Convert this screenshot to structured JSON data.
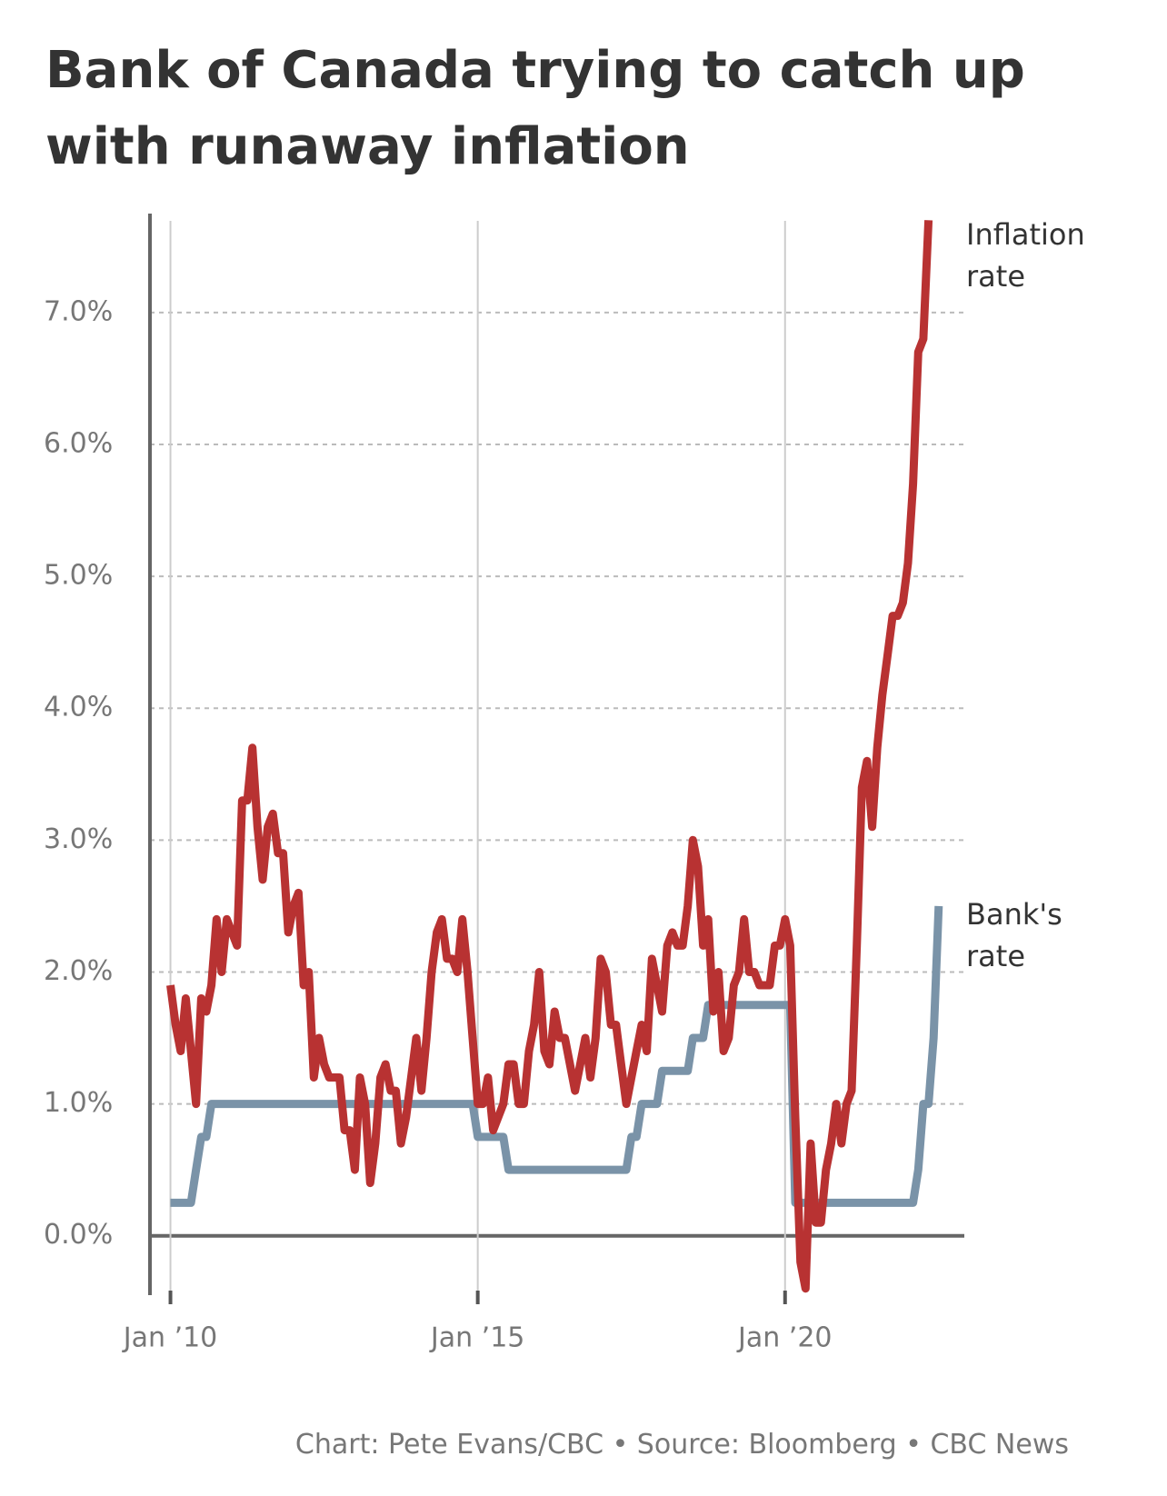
{
  "chart_data": {
    "type": "line",
    "title": "Bank of Canada trying to catch up with runaway inflation",
    "source": "Chart: Pete Evans/CBC • Source: Bloomberg • CBC News",
    "x": [
      "2010-01",
      "2010-02",
      "2010-03",
      "2010-04",
      "2010-05",
      "2010-06",
      "2010-07",
      "2010-08",
      "2010-09",
      "2010-10",
      "2010-11",
      "2010-12",
      "2011-01",
      "2011-02",
      "2011-03",
      "2011-04",
      "2011-05",
      "2011-06",
      "2011-07",
      "2011-08",
      "2011-09",
      "2011-10",
      "2011-11",
      "2011-12",
      "2012-01",
      "2012-02",
      "2012-03",
      "2012-04",
      "2012-05",
      "2012-06",
      "2012-07",
      "2012-08",
      "2012-09",
      "2012-10",
      "2012-11",
      "2012-12",
      "2013-01",
      "2013-02",
      "2013-03",
      "2013-04",
      "2013-05",
      "2013-06",
      "2013-07",
      "2013-08",
      "2013-09",
      "2013-10",
      "2013-11",
      "2013-12",
      "2014-01",
      "2014-02",
      "2014-03",
      "2014-04",
      "2014-05",
      "2014-06",
      "2014-07",
      "2014-08",
      "2014-09",
      "2014-10",
      "2014-11",
      "2014-12",
      "2015-01",
      "2015-02",
      "2015-03",
      "2015-04",
      "2015-05",
      "2015-06",
      "2015-07",
      "2015-08",
      "2015-09",
      "2015-10",
      "2015-11",
      "2015-12",
      "2016-01",
      "2016-02",
      "2016-03",
      "2016-04",
      "2016-05",
      "2016-06",
      "2016-07",
      "2016-08",
      "2016-09",
      "2016-10",
      "2016-11",
      "2016-12",
      "2017-01",
      "2017-02",
      "2017-03",
      "2017-04",
      "2017-05",
      "2017-06",
      "2017-07",
      "2017-08",
      "2017-09",
      "2017-10",
      "2017-11",
      "2017-12",
      "2018-01",
      "2018-02",
      "2018-03",
      "2018-04",
      "2018-05",
      "2018-06",
      "2018-07",
      "2018-08",
      "2018-09",
      "2018-10",
      "2018-11",
      "2018-12",
      "2019-01",
      "2019-02",
      "2019-03",
      "2019-04",
      "2019-05",
      "2019-06",
      "2019-07",
      "2019-08",
      "2019-09",
      "2019-10",
      "2019-11",
      "2019-12",
      "2020-01",
      "2020-02",
      "2020-03",
      "2020-04",
      "2020-05",
      "2020-06",
      "2020-07",
      "2020-08",
      "2020-09",
      "2020-10",
      "2020-11",
      "2020-12",
      "2021-01",
      "2021-02",
      "2021-03",
      "2021-04",
      "2021-05",
      "2021-06",
      "2021-07",
      "2021-08",
      "2021-09",
      "2021-10",
      "2021-11",
      "2021-12",
      "2022-01",
      "2022-02",
      "2022-03",
      "2022-04",
      "2022-05",
      "2022-06",
      "2022-07"
    ],
    "series": [
      {
        "name": "Inflation rate",
        "color": "#b83232",
        "values": [
          1.9,
          1.6,
          1.4,
          1.8,
          1.4,
          1.0,
          1.8,
          1.7,
          1.9,
          2.4,
          2.0,
          2.4,
          2.3,
          2.2,
          3.3,
          3.3,
          3.7,
          3.1,
          2.7,
          3.1,
          3.2,
          2.9,
          2.9,
          2.3,
          2.5,
          2.6,
          1.9,
          2.0,
          1.2,
          1.5,
          1.3,
          1.2,
          1.2,
          1.2,
          0.8,
          0.8,
          0.5,
          1.2,
          1.0,
          0.4,
          0.7,
          1.2,
          1.3,
          1.1,
          1.1,
          0.7,
          0.9,
          1.2,
          1.5,
          1.1,
          1.5,
          2.0,
          2.3,
          2.4,
          2.1,
          2.1,
          2.0,
          2.4,
          2.0,
          1.5,
          1.0,
          1.0,
          1.2,
          0.8,
          0.9,
          1.0,
          1.3,
          1.3,
          1.0,
          1.0,
          1.4,
          1.6,
          2.0,
          1.4,
          1.3,
          1.7,
          1.5,
          1.5,
          1.3,
          1.1,
          1.3,
          1.5,
          1.2,
          1.5,
          2.1,
          2.0,
          1.6,
          1.6,
          1.3,
          1.0,
          1.2,
          1.4,
          1.6,
          1.4,
          2.1,
          1.9,
          1.7,
          2.2,
          2.3,
          2.2,
          2.2,
          2.5,
          3.0,
          2.8,
          2.2,
          2.4,
          1.7,
          2.0,
          1.4,
          1.5,
          1.9,
          2.0,
          2.4,
          2.0,
          2.0,
          1.9,
          1.9,
          1.9,
          2.2,
          2.2,
          2.4,
          2.2,
          0.9,
          -0.2,
          -0.4,
          0.7,
          0.1,
          0.1,
          0.5,
          0.7,
          1.0,
          0.7,
          1.0,
          1.1,
          2.2,
          3.4,
          3.6,
          3.1,
          3.7,
          4.1,
          4.4,
          4.7,
          4.7,
          4.8,
          5.1,
          5.7,
          6.7,
          6.8,
          7.7,
          null,
          null
        ]
      },
      {
        "name": "Bank's rate",
        "color": "#7a93a8",
        "values": [
          0.25,
          0.25,
          0.25,
          0.25,
          0.25,
          0.5,
          0.75,
          0.75,
          1,
          1,
          1,
          1,
          1,
          1,
          1,
          1,
          1,
          1,
          1,
          1,
          1,
          1,
          1,
          1,
          1,
          1,
          1,
          1,
          1,
          1,
          1,
          1,
          1,
          1,
          1,
          1,
          1,
          1,
          1,
          1,
          1,
          1,
          1,
          1,
          1,
          1,
          1,
          1,
          1,
          1,
          1,
          1,
          1,
          1,
          1,
          1,
          1,
          1,
          1,
          1,
          0.75,
          0.75,
          0.75,
          0.75,
          0.75,
          0.75,
          0.5,
          0.5,
          0.5,
          0.5,
          0.5,
          0.5,
          0.5,
          0.5,
          0.5,
          0.5,
          0.5,
          0.5,
          0.5,
          0.5,
          0.5,
          0.5,
          0.5,
          0.5,
          0.5,
          0.5,
          0.5,
          0.5,
          0.5,
          0.5,
          0.75,
          0.75,
          1,
          1,
          1,
          1,
          1.25,
          1.25,
          1.25,
          1.25,
          1.25,
          1.25,
          1.5,
          1.5,
          1.5,
          1.75,
          1.75,
          1.75,
          1.75,
          1.75,
          1.75,
          1.75,
          1.75,
          1.75,
          1.75,
          1.75,
          1.75,
          1.75,
          1.75,
          1.75,
          1.75,
          1.75,
          0.25,
          0.25,
          0.25,
          0.25,
          0.25,
          0.25,
          0.25,
          0.25,
          0.25,
          0.25,
          0.25,
          0.25,
          0.25,
          0.25,
          0.25,
          0.25,
          0.25,
          0.25,
          0.25,
          0.25,
          0.25,
          0.25,
          0.25,
          0.25,
          0.5,
          1,
          1,
          1.5,
          2.5
        ]
      }
    ],
    "xlim": [
      "2009-09",
      "2022-12"
    ],
    "xticks": [
      {
        "value": "2010-01",
        "label": "Jan ’10"
      },
      {
        "value": "2015-01",
        "label": "Jan ’15"
      },
      {
        "value": "2020-01",
        "label": "Jan ’20"
      }
    ],
    "ylim": [
      -0.45,
      7.75
    ],
    "yticks": [
      {
        "value": 0,
        "label": "0.0%"
      },
      {
        "value": 1,
        "label": "1.0%"
      },
      {
        "value": 2,
        "label": "2.0%"
      },
      {
        "value": 3,
        "label": "3.0%"
      },
      {
        "value": 4,
        "label": "4.0%"
      },
      {
        "value": 5,
        "label": "5.0%"
      },
      {
        "value": 6,
        "label": "6.0%"
      },
      {
        "value": 7,
        "label": "7.0%"
      }
    ],
    "grid": true
  }
}
